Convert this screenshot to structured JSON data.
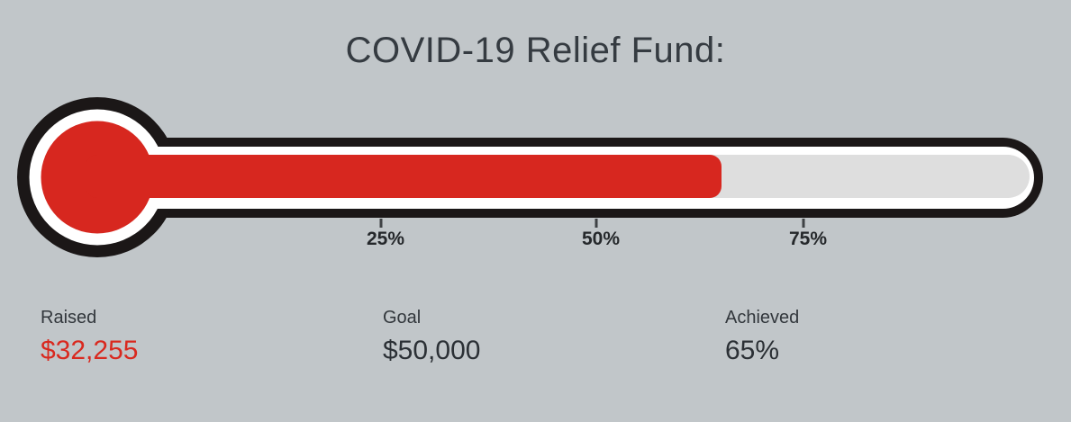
{
  "title": "COVID-19 Relief Fund:",
  "colors": {
    "background": "#c1c6c9",
    "outline": "#1b1717",
    "inner_white": "#ffffff",
    "track": "#dedede",
    "fill_red": "#d7271f",
    "value_red": "#d9291f",
    "dark_text": "#353b41"
  },
  "thermometer": {
    "percent_achieved": 65,
    "ticks": [
      {
        "label": "25%",
        "percent": 25
      },
      {
        "label": "50%",
        "percent": 50
      },
      {
        "label": "75%",
        "percent": 75
      }
    ]
  },
  "stats": [
    {
      "label": "Raised",
      "value": "$32,255",
      "emphasis": "red"
    },
    {
      "label": "Goal",
      "value": "$50,000",
      "emphasis": "dark"
    },
    {
      "label": "Achieved",
      "value": "65%",
      "emphasis": "dark"
    }
  ],
  "chart_data": {
    "type": "bar",
    "title": "COVID-19 Relief Fund:",
    "categories": [
      "Raised"
    ],
    "values": [
      32255
    ],
    "goal": 50000,
    "percent_achieved": 65,
    "xlabel": "",
    "ylabel": "",
    "axis_tick_labels": [
      "25%",
      "50%",
      "75%"
    ],
    "axis_range_percent": [
      0,
      100
    ],
    "legend": "none",
    "style": "thermometer-progress-gauge"
  }
}
